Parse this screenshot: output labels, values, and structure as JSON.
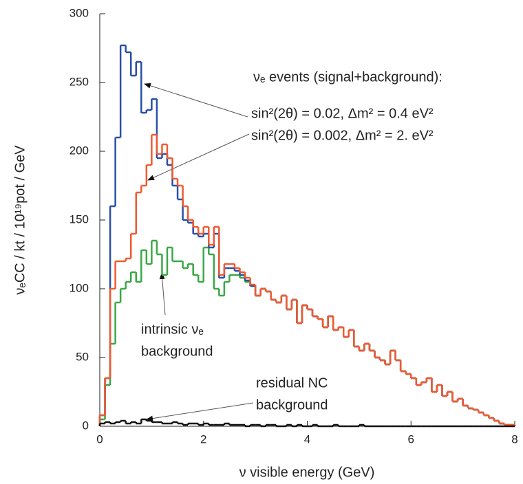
{
  "chart_data": {
    "type": "histogram",
    "x_label": "ν visible energy (GeV)",
    "y_label": "νₑCC / kt / 10¹⁹pot / GeV",
    "annotations": [
      "νₑ events (signal+background):",
      "sin²(2θ) = 0.02,  Δm² = 0.4 eV²",
      "sin²(2θ) = 0.002,  Δm² = 2. eV²",
      "intrinsic νₑ",
      "background",
      "residual NC",
      "background"
    ],
    "bins": [
      0,
      0.1,
      0.2,
      0.3,
      0.4,
      0.5,
      0.6,
      0.7,
      0.8,
      0.9,
      1,
      1.1,
      1.2,
      1.3,
      1.4,
      1.5,
      1.6,
      1.7,
      1.8,
      1.9,
      2,
      2.1,
      2.2,
      2.3,
      2.4,
      2.5,
      2.6,
      2.7,
      2.8,
      2.9,
      3,
      3.1,
      3.2,
      3.3,
      3.4,
      3.5,
      3.6,
      3.7,
      3.8,
      3.9,
      4,
      4.1,
      4.2,
      4.3,
      4.4,
      4.5,
      4.6,
      4.7,
      4.8,
      4.9,
      5,
      5.1,
      5.2,
      5.3,
      5.4,
      5.5,
      5.6,
      5.7,
      5.8,
      5.9,
      6,
      6.1,
      6.2,
      6.3,
      6.4,
      6.5,
      6.6,
      6.7,
      6.8,
      6.9,
      7,
      7.1,
      7.2,
      7.3,
      7.4,
      7.5,
      7.6,
      7.7,
      7.8,
      7.9,
      8
    ],
    "series": [
      {
        "color": "#3aa845",
        "values": [
          5,
          30,
          60,
          90,
          100,
          105,
          112,
          105,
          128,
          118,
          135,
          125,
          110,
          130,
          120,
          120,
          115,
          118,
          110,
          105,
          130,
          125,
          100,
          95,
          105,
          110,
          110,
          108,
          105,
          102,
          95,
          100,
          98,
          92,
          90,
          95,
          85,
          92,
          75,
          88,
          85,
          80,
          78,
          72,
          80,
          70,
          72,
          65,
          70,
          58,
          55,
          60,
          55,
          50,
          48,
          45,
          55,
          48,
          40,
          38,
          35,
          30,
          32,
          35,
          25,
          30,
          22,
          25,
          18,
          20,
          15,
          13,
          12,
          10,
          8,
          6,
          4,
          2,
          1,
          1
        ]
      },
      {
        "color": "#2a4fa8",
        "values": [
          8,
          35,
          160,
          210,
          277,
          272,
          255,
          265,
          228,
          230,
          238,
          195,
          198,
          190,
          175,
          165,
          150,
          148,
          140,
          138,
          140,
          130,
          140,
          108,
          115,
          115,
          113,
          110,
          106,
          102,
          95,
          100,
          98,
          92,
          90,
          95,
          85,
          92,
          75,
          88,
          85,
          80,
          78,
          72,
          80,
          70,
          72,
          65,
          70,
          58,
          55,
          60,
          55,
          50,
          48,
          45,
          55,
          48,
          40,
          38,
          35,
          30,
          32,
          35,
          25,
          30,
          22,
          25,
          18,
          20,
          15,
          13,
          12,
          10,
          8,
          6,
          4,
          2,
          1,
          1
        ]
      },
      {
        "color": "#f05a30",
        "values": [
          8,
          35,
          100,
          120,
          120,
          122,
          140,
          170,
          175,
          190,
          212,
          198,
          205,
          195,
          180,
          175,
          160,
          150,
          145,
          140,
          145,
          132,
          145,
          110,
          118,
          118,
          115,
          112,
          108,
          103,
          95,
          100,
          98,
          92,
          90,
          95,
          85,
          92,
          75,
          88,
          85,
          80,
          78,
          72,
          80,
          70,
          72,
          65,
          70,
          58,
          55,
          60,
          55,
          50,
          48,
          45,
          55,
          48,
          40,
          38,
          35,
          30,
          32,
          35,
          25,
          30,
          22,
          25,
          18,
          20,
          15,
          13,
          12,
          10,
          8,
          6,
          4,
          2,
          1,
          1
        ]
      },
      {
        "color": "#111111",
        "values": [
          2,
          3,
          2,
          3,
          4,
          2,
          3,
          2,
          5,
          4,
          3,
          3,
          2,
          2,
          3,
          2,
          1,
          2,
          2,
          1,
          2,
          1,
          1,
          1,
          2,
          1,
          1,
          1,
          0,
          1,
          1,
          0,
          1,
          1,
          0,
          0,
          1,
          0,
          1,
          0,
          0,
          1,
          0,
          0,
          0,
          1,
          0,
          0,
          0,
          0,
          1,
          0,
          0,
          0,
          0,
          0,
          0,
          0,
          0,
          0,
          0,
          0,
          0,
          0,
          0,
          0,
          0,
          0,
          0,
          0,
          0,
          0,
          0,
          0,
          0,
          0,
          0,
          0,
          0,
          0
        ]
      }
    ],
    "xlim": [
      0,
      8
    ],
    "xticks": [
      0,
      2,
      4,
      6,
      8
    ],
    "ylim": [
      0,
      300
    ],
    "yticks": [
      0,
      50,
      100,
      150,
      200,
      250,
      300
    ]
  }
}
